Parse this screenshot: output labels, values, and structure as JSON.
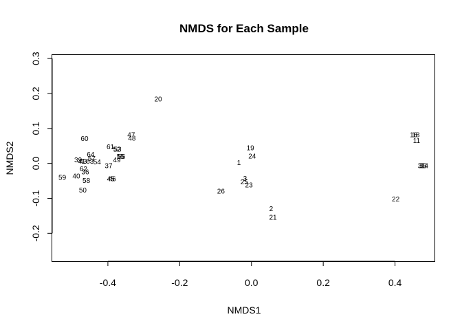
{
  "chart_data": {
    "type": "scatter",
    "title": "NMDS for Each Sample",
    "xlabel": "NMDS1",
    "ylabel": "NMDS2",
    "xlim": [
      -0.555,
      0.51
    ],
    "ylim": [
      -0.28,
      0.31
    ],
    "xticks": [
      -0.4,
      -0.2,
      0.0,
      0.2,
      0.4
    ],
    "xtick_labels": [
      "-0.4",
      "-0.2",
      "0.0",
      "0.2",
      "0.4"
    ],
    "yticks": [
      -0.2,
      -0.1,
      0.0,
      0.1,
      0.2,
      0.3
    ],
    "ytick_labels": [
      "-0.2",
      "-0.1",
      "0.0",
      "0.1",
      "0.2",
      "0.3"
    ],
    "grid": false,
    "points": [
      {
        "label": "20",
        "x": -0.26,
        "y": 0.182
      },
      {
        "label": "47",
        "x": -0.335,
        "y": 0.08
      },
      {
        "label": "48",
        "x": -0.333,
        "y": 0.07
      },
      {
        "label": "60",
        "x": -0.465,
        "y": 0.069
      },
      {
        "label": "61",
        "x": -0.393,
        "y": 0.045
      },
      {
        "label": "52",
        "x": -0.375,
        "y": 0.039
      },
      {
        "label": "53",
        "x": -0.373,
        "y": 0.039
      },
      {
        "label": "64",
        "x": -0.448,
        "y": 0.024
      },
      {
        "label": "55",
        "x": -0.365,
        "y": 0.018
      },
      {
        "label": "56",
        "x": -0.362,
        "y": 0.018
      },
      {
        "label": "57",
        "x": -0.445,
        "y": 0.012
      },
      {
        "label": "39",
        "x": -0.483,
        "y": 0.008
      },
      {
        "label": "49",
        "x": -0.375,
        "y": 0.008
      },
      {
        "label": "41",
        "x": -0.473,
        "y": 0.004
      },
      {
        "label": "43",
        "x": -0.469,
        "y": 0.004
      },
      {
        "label": "63",
        "x": -0.45,
        "y": 0.004
      },
      {
        "label": "54",
        "x": -0.43,
        "y": 0.002
      },
      {
        "label": "37",
        "x": -0.398,
        "y": -0.009
      },
      {
        "label": "62",
        "x": -0.468,
        "y": -0.017
      },
      {
        "label": "36",
        "x": -0.463,
        "y": -0.026
      },
      {
        "label": "40",
        "x": -0.488,
        "y": -0.038
      },
      {
        "label": "59",
        "x": -0.527,
        "y": -0.042
      },
      {
        "label": "58",
        "x": -0.46,
        "y": -0.051
      },
      {
        "label": "45",
        "x": -0.392,
        "y": -0.046
      },
      {
        "label": "46",
        "x": -0.388,
        "y": -0.046
      },
      {
        "label": "50",
        "x": -0.47,
        "y": -0.078
      },
      {
        "label": "19",
        "x": -0.003,
        "y": 0.043
      },
      {
        "label": "24",
        "x": 0.002,
        "y": 0.019
      },
      {
        "label": "1",
        "x": -0.035,
        "y": 0.0
      },
      {
        "label": "3",
        "x": -0.018,
        "y": -0.045
      },
      {
        "label": "25",
        "x": -0.02,
        "y": -0.055
      },
      {
        "label": "23",
        "x": -0.007,
        "y": -0.064
      },
      {
        "label": "26",
        "x": -0.085,
        "y": -0.081
      },
      {
        "label": "2",
        "x": 0.055,
        "y": -0.132
      },
      {
        "label": "21",
        "x": 0.06,
        "y": -0.156
      },
      {
        "label": "22",
        "x": 0.402,
        "y": -0.104
      },
      {
        "label": "16",
        "x": 0.452,
        "y": 0.08
      },
      {
        "label": "18",
        "x": 0.458,
        "y": 0.08
      },
      {
        "label": "11",
        "x": 0.46,
        "y": 0.063
      },
      {
        "label": "31",
        "x": 0.474,
        "y": -0.009
      },
      {
        "label": "33",
        "x": 0.478,
        "y": -0.009
      },
      {
        "label": "34",
        "x": 0.482,
        "y": -0.009
      }
    ]
  }
}
